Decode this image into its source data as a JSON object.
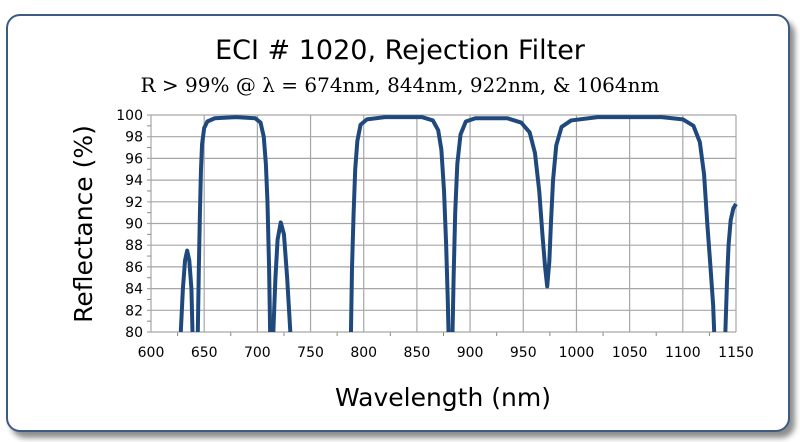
{
  "chart_data": {
    "type": "line",
    "title": "ECI # 1020, Rejection Filter",
    "subtitle": "R > 99% @ λ = 674nm, 844nm, 922nm, & 1064nm",
    "xlabel": "Wavelength (nm)",
    "ylabel": "Reflectance (%)",
    "xlim": [
      600,
      1150
    ],
    "ylim": [
      80,
      100
    ],
    "xticks": [
      600,
      650,
      700,
      750,
      800,
      850,
      900,
      950,
      1000,
      1050,
      1100,
      1150
    ],
    "yticks": [
      80,
      82,
      84,
      86,
      88,
      90,
      92,
      94,
      96,
      98,
      100
    ],
    "grid": true,
    "line_color": "#1f497d",
    "segments": [
      [
        [
          628,
          80
        ],
        [
          630,
          84
        ],
        [
          632,
          86.6
        ],
        [
          634,
          87.5
        ],
        [
          636,
          86.6
        ],
        [
          638,
          84
        ],
        [
          639,
          80
        ]
      ],
      [
        [
          644,
          80
        ],
        [
          645,
          86
        ],
        [
          646,
          91
        ],
        [
          647,
          95
        ],
        [
          648,
          97.3
        ],
        [
          650,
          98.8
        ],
        [
          653,
          99.4
        ],
        [
          660,
          99.7
        ],
        [
          680,
          99.8
        ],
        [
          698,
          99.7
        ],
        [
          703,
          99.3
        ],
        [
          706,
          98
        ],
        [
          708,
          95.5
        ],
        [
          709.5,
          92
        ],
        [
          711,
          86
        ],
        [
          712,
          80
        ]
      ],
      [
        [
          715,
          80
        ],
        [
          717,
          85
        ],
        [
          719,
          88.5
        ],
        [
          722,
          90.1
        ],
        [
          725,
          89
        ],
        [
          728,
          85
        ],
        [
          731,
          80
        ]
      ],
      [
        [
          788,
          80
        ],
        [
          789,
          86
        ],
        [
          790.5,
          91
        ],
        [
          792,
          95
        ],
        [
          794,
          97.6
        ],
        [
          797,
          99.1
        ],
        [
          803,
          99.6
        ],
        [
          820,
          99.8
        ],
        [
          855,
          99.8
        ],
        [
          865,
          99.5
        ],
        [
          870,
          98.6
        ],
        [
          873,
          96.8
        ],
        [
          875.5,
          93
        ],
        [
          877.5,
          88
        ],
        [
          879,
          83
        ],
        [
          879.7,
          80
        ]
      ],
      [
        [
          883.5,
          80
        ],
        [
          884.5,
          85
        ],
        [
          886,
          91
        ],
        [
          888,
          95.5
        ],
        [
          891,
          98.2
        ],
        [
          896,
          99.4
        ],
        [
          905,
          99.7
        ],
        [
          935,
          99.7
        ],
        [
          948,
          99.3
        ],
        [
          956,
          98.4
        ],
        [
          961,
          96.5
        ],
        [
          965,
          93
        ],
        [
          968,
          89
        ],
        [
          970.5,
          86
        ],
        [
          972.5,
          84.2
        ],
        [
          974.5,
          86.5
        ],
        [
          976,
          90
        ],
        [
          978,
          94
        ],
        [
          981,
          97.2
        ],
        [
          986,
          98.9
        ],
        [
          995,
          99.5
        ],
        [
          1020,
          99.8
        ],
        [
          1080,
          99.8
        ],
        [
          1100,
          99.6
        ],
        [
          1110,
          99
        ],
        [
          1116,
          97.5
        ],
        [
          1120,
          94.5
        ],
        [
          1123,
          90
        ],
        [
          1126,
          86
        ],
        [
          1128.5,
          82.5
        ],
        [
          1129.5,
          80
        ]
      ],
      [
        [
          1140,
          80
        ],
        [
          1141.5,
          84.5
        ],
        [
          1143,
          88
        ],
        [
          1145,
          90.3
        ],
        [
          1147.5,
          91.4
        ],
        [
          1150,
          91.8
        ]
      ]
    ]
  }
}
